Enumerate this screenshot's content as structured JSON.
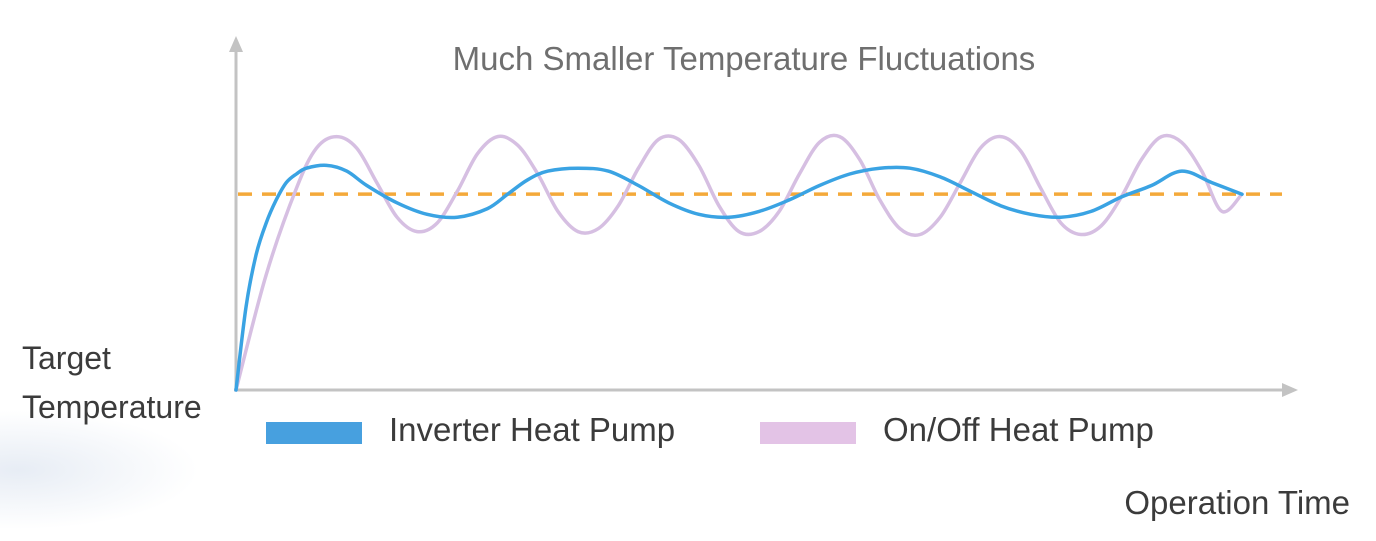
{
  "chart_data": {
    "type": "line",
    "title": "Much Smaller Temperature Fluctuations",
    "ylabel_lines": [
      "Target",
      "Temperature"
    ],
    "xlabel": "Operation Time",
    "legend_position": "bottom-left",
    "grid": false,
    "xlim": [
      0,
      100
    ],
    "ylim": [
      0,
      100
    ],
    "target_level": 68,
    "colors": {
      "axis": "#c3c3c3",
      "target_line": "#f4a93a",
      "title_text": "#6f6f6f",
      "label_text": "#3b3b3b"
    },
    "series": [
      {
        "name": "Inverter Heat Pump",
        "color": "#3aa3e3",
        "legend_swatch": "#47a0df",
        "x": [
          0,
          1,
          2,
          3,
          4,
          5,
          6,
          7,
          9,
          11,
          13,
          16,
          19,
          22,
          25,
          27,
          29,
          31,
          34,
          37,
          40,
          43,
          46,
          49,
          52,
          55,
          58,
          61,
          64,
          67,
          70,
          73,
          76,
          79,
          82,
          85,
          88,
          91,
          94,
          97,
          100
        ],
        "y": [
          0,
          29,
          47,
          58,
          66,
          72,
          75,
          77,
          78,
          76,
          71,
          65,
          61,
          60,
          63,
          68,
          73,
          76,
          77,
          76,
          71,
          65,
          61,
          60,
          62,
          66,
          71,
          75,
          77,
          77,
          74,
          69,
          64,
          61,
          60,
          62,
          67,
          71,
          76,
          72,
          68
        ]
      },
      {
        "name": "On/Off Heat Pump",
        "color": "#d6bfe2",
        "legend_swatch": "#e3c3e6",
        "x": [
          0,
          3,
          6,
          8,
          10,
          12,
          14,
          16,
          18,
          20,
          22,
          24,
          26,
          28,
          30,
          32,
          34,
          36,
          38,
          40,
          42,
          44,
          46,
          48,
          50,
          52,
          54,
          56,
          58,
          60,
          62,
          64,
          66,
          68,
          70,
          72,
          74,
          76,
          78,
          80,
          82,
          84,
          86,
          88,
          90,
          92,
          94,
          96,
          98,
          100
        ],
        "y": [
          0,
          40,
          70,
          84,
          88,
          84,
          72,
          60,
          55,
          58,
          69,
          82,
          88,
          85,
          75,
          62,
          55,
          56,
          64,
          77,
          87,
          87,
          78,
          64,
          55,
          55,
          62,
          75,
          86,
          88,
          80,
          66,
          56,
          54,
          60,
          72,
          84,
          88,
          83,
          70,
          58,
          54,
          57,
          67,
          80,
          88,
          86,
          76,
          62,
          68
        ]
      }
    ]
  }
}
